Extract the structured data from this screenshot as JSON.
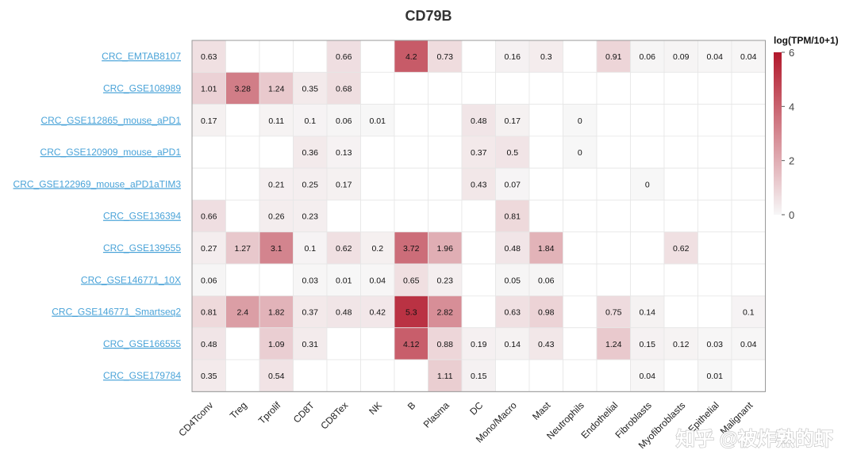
{
  "chart_data": {
    "type": "heatmap",
    "title": "CD79B",
    "legend_title": "log(TPM/10+1)",
    "legend_ticks": [
      "6",
      "4",
      "2",
      "0"
    ],
    "scale": {
      "min": 0,
      "max": 6,
      "low_color": "#f7f7f7",
      "high_color": "#b2182b"
    },
    "columns": [
      "CD4Tconv",
      "Treg",
      "Tprolif",
      "CD8T",
      "CD8Tex",
      "NK",
      "B",
      "Plasma",
      "DC",
      "Mono/Macro",
      "Mast",
      "Neutrophils",
      "Endothelial",
      "Fibroblasts",
      "Myofibroblasts",
      "Epithelial",
      "Malignant"
    ],
    "rows": [
      {
        "name": "CRC_EMTAB8107",
        "values": [
          "0.63",
          null,
          null,
          null,
          "0.66",
          null,
          "4.2",
          "0.73",
          null,
          "0.16",
          "0.3",
          null,
          "0.91",
          "0.06",
          "0.09",
          "0.04",
          "0.04"
        ]
      },
      {
        "name": "CRC_GSE108989",
        "values": [
          "1.01",
          "3.28",
          "1.24",
          "0.35",
          "0.68",
          null,
          null,
          null,
          null,
          null,
          null,
          null,
          null,
          null,
          null,
          null,
          null
        ]
      },
      {
        "name": "CRC_GSE112865_mouse_aPD1",
        "values": [
          "0.17",
          null,
          "0.11",
          "0.1",
          "0.06",
          "0.01",
          null,
          null,
          "0.48",
          "0.17",
          null,
          "0",
          null,
          null,
          null,
          null,
          null
        ]
      },
      {
        "name": "CRC_GSE120909_mouse_aPD1",
        "values": [
          null,
          null,
          null,
          "0.36",
          "0.13",
          null,
          null,
          null,
          "0.37",
          "0.5",
          null,
          "0",
          null,
          null,
          null,
          null,
          null
        ]
      },
      {
        "name": "CRC_GSE122969_mouse_aPD1aTIM3",
        "values": [
          null,
          null,
          "0.21",
          "0.25",
          "0.17",
          null,
          null,
          null,
          "0.43",
          "0.07",
          null,
          null,
          null,
          "0",
          null,
          null,
          null
        ]
      },
      {
        "name": "CRC_GSE136394",
        "values": [
          "0.66",
          null,
          "0.26",
          "0.23",
          null,
          null,
          null,
          null,
          null,
          "0.81",
          null,
          null,
          null,
          null,
          null,
          null,
          null
        ]
      },
      {
        "name": "CRC_GSE139555",
        "values": [
          "0.27",
          "1.27",
          "3.1",
          "0.1",
          "0.62",
          "0.2",
          "3.72",
          "1.96",
          null,
          "0.48",
          "1.84",
          null,
          null,
          null,
          "0.62",
          null,
          null
        ]
      },
      {
        "name": "CRC_GSE146771_10X",
        "values": [
          "0.06",
          null,
          null,
          "0.03",
          "0.01",
          "0.04",
          "0.65",
          "0.23",
          null,
          "0.05",
          "0.06",
          null,
          null,
          null,
          null,
          null,
          null
        ]
      },
      {
        "name": "CRC_GSE146771_Smartseq2",
        "values": [
          "0.81",
          "2.4",
          "1.82",
          "0.37",
          "0.48",
          "0.42",
          "5.3",
          "2.82",
          null,
          "0.63",
          "0.98",
          null,
          "0.75",
          "0.14",
          null,
          null,
          "0.1"
        ]
      },
      {
        "name": "CRC_GSE166555",
        "values": [
          "0.48",
          null,
          "1.09",
          "0.31",
          null,
          null,
          "4.12",
          "0.88",
          "0.19",
          "0.14",
          "0.43",
          null,
          "1.24",
          "0.15",
          "0.12",
          "0.03",
          "0.04"
        ]
      },
      {
        "name": "CRC_GSE179784",
        "values": [
          "0.35",
          null,
          "0.54",
          null,
          null,
          null,
          null,
          "1.11",
          "0.15",
          null,
          null,
          null,
          null,
          "0.04",
          null,
          "0.01",
          null
        ]
      }
    ]
  },
  "watermark": "知乎 @被炸熟的虾"
}
